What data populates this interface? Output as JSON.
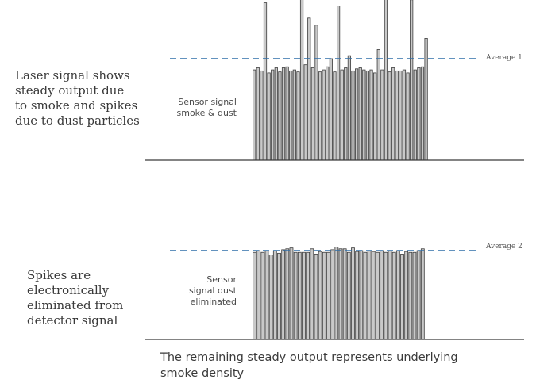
{
  "top_panel": {
    "description": "Laser signal shows\nsteady output due\nto smoke and spikes\ndue to dust particles",
    "sensor_label": "Sensor signal\nsmoke & dust",
    "average_label": "Average 1",
    "average_level": 1.0,
    "bar_levels": [
      0.89,
      0.91,
      0.88,
      1.55,
      0.86,
      0.89,
      0.91,
      0.87,
      0.91,
      0.92,
      0.88,
      0.89,
      0.87,
      1.7,
      0.94,
      1.4,
      0.91,
      1.33,
      0.87,
      0.89,
      0.92,
      1.0,
      0.87,
      1.52,
      0.89,
      0.91,
      1.03,
      0.88,
      0.9,
      0.91,
      0.89,
      0.88,
      0.89,
      0.86,
      1.09,
      0.89,
      1.99,
      0.87,
      0.91,
      0.88,
      0.88,
      0.89,
      0.86,
      1.58,
      0.89,
      0.91,
      0.92,
      1.2
    ]
  },
  "bottom_panel": {
    "description": "Spikes are\nelectronically\neliminated from\ndetector signal",
    "sensor_label": "Sensor\nsignal dust\neliminated",
    "average_label": "Average 2",
    "average_level": 1.0,
    "bar_levels": [
      0.98,
      1.0,
      0.98,
      1.0,
      0.95,
      1.0,
      0.97,
      1.01,
      1.02,
      1.03,
      0.98,
      0.98,
      0.98,
      0.98,
      1.02,
      0.96,
      0.99,
      0.98,
      0.98,
      1.01,
      1.04,
      1.02,
      1.02,
      0.98,
      1.03,
      0.99,
      1.0,
      0.98,
      1.0,
      0.99,
      0.98,
      1.0,
      0.98,
      1.0,
      0.98,
      1.0,
      0.96,
      0.99,
      0.98,
      0.98,
      1.0,
      1.02
    ]
  },
  "caption": "The remaining steady output represents underlying\nsmoke density",
  "colors": {
    "bar_fill": "#c9c9c9",
    "bar_stroke": "#3c3c3c",
    "average_line": "#2f6ea8",
    "baseline": "#3a3a3a"
  }
}
